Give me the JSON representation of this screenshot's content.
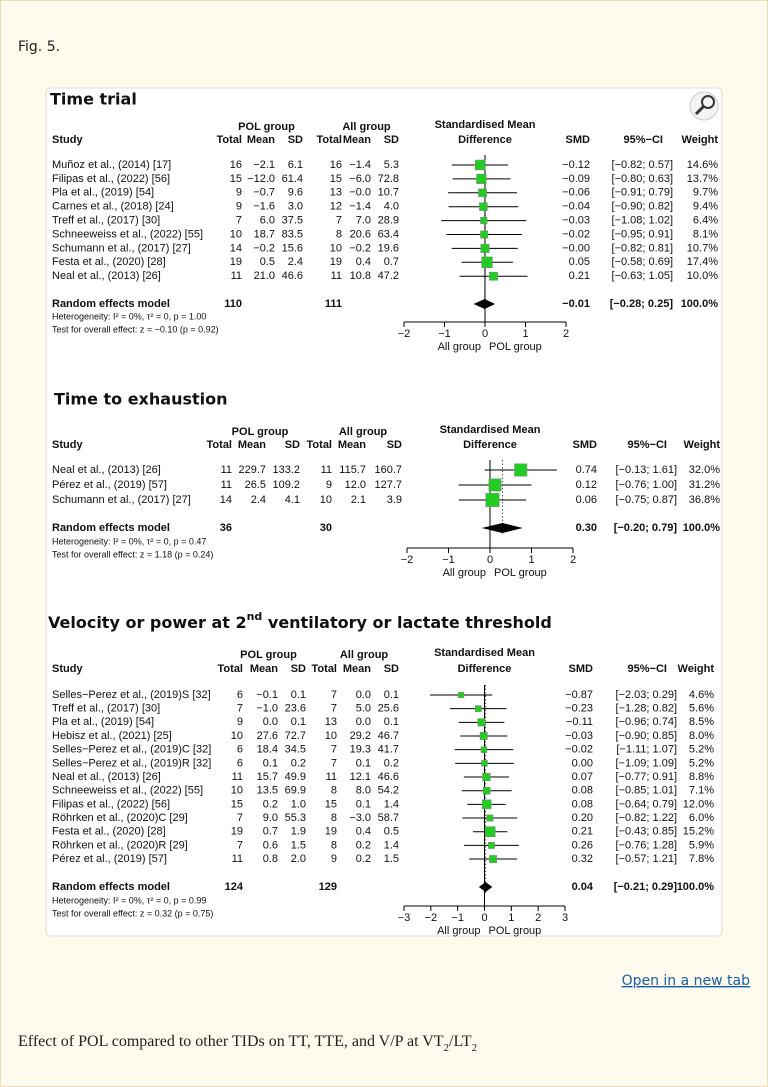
{
  "figure_label": "Fig. 5.",
  "link": "Open in a new tab",
  "caption": [
    "Effect of POL compared to other TIDs on TT, TTE, and V/P at VT",
    "2",
    "/LT",
    "2"
  ],
  "chart_data": [
    {
      "type": "forest",
      "title": "Time trial",
      "group_headers": [
        "POL group",
        "All group"
      ],
      "effect_header": [
        "Standardised Mean",
        "Difference"
      ],
      "columns": [
        "Study",
        "Total",
        "Mean",
        "SD",
        "Total",
        "Mean",
        "SD",
        "SMD",
        "95%−CI",
        "Weight"
      ],
      "studies": [
        "Muñoz et al., (2014) [17]",
        "Filipas et al., (2022) [56]",
        "Pla et al., (2019) [54]",
        "Carnes et al., (2018) [24]",
        "Treff et al., (2017) [30]",
        "Schneeweiss et al., (2022) [55]",
        "Schumann et al., (2017) [27]",
        "Festa et al., (2020) [28]",
        "Neal et al., (2013) [26]"
      ],
      "table": [
        [
          "16",
          "−2.1",
          "6.1",
          "16",
          "−1.4",
          "5.3"
        ],
        [
          "15",
          "−12.0",
          "61.4",
          "15",
          "−6.0",
          "72.8"
        ],
        [
          "9",
          "−0.7",
          "9.6",
          "13",
          "−0.0",
          "10.7"
        ],
        [
          "9",
          "−1.6",
          "3.0",
          "12",
          "−1.4",
          "4.0"
        ],
        [
          "7",
          "6.0",
          "37.5",
          "7",
          "7.0",
          "28.9"
        ],
        [
          "10",
          "18.7",
          "83.5",
          "8",
          "20.6",
          "63.4"
        ],
        [
          "14",
          "−0.2",
          "15.6",
          "10",
          "−0.2",
          "19.6"
        ],
        [
          "19",
          "0.5",
          "2.4",
          "19",
          "0.4",
          "0.7"
        ],
        [
          "11",
          "21.0",
          "46.6",
          "11",
          "10.8",
          "47.2"
        ]
      ],
      "smd": [
        -0.12,
        -0.09,
        -0.06,
        -0.04,
        -0.03,
        -0.02,
        -0.0,
        0.05,
        0.21
      ],
      "smd_labels": [
        "−0.12",
        "−0.09",
        "−0.06",
        "−0.04",
        "−0.03",
        "−0.02",
        "−0.00",
        "0.05",
        "0.21"
      ],
      "ci": [
        [
          -0.82,
          0.57
        ],
        [
          -0.8,
          0.63
        ],
        [
          -0.91,
          0.79
        ],
        [
          -0.9,
          0.82
        ],
        [
          -1.08,
          1.02
        ],
        [
          -0.95,
          0.91
        ],
        [
          -0.82,
          0.81
        ],
        [
          -0.58,
          0.69
        ],
        [
          -0.63,
          1.05
        ]
      ],
      "ci_labels": [
        "[−0.82; 0.57]",
        "[−0.80; 0.63]",
        "[−0.91; 0.79]",
        "[−0.90; 0.82]",
        "[−1.08; 1.02]",
        "[−0.95; 0.91]",
        "[−0.82; 0.81]",
        "[−0.58; 0.69]",
        "[−0.63; 1.05]"
      ],
      "weights": [
        14.6,
        13.7,
        9.7,
        9.4,
        6.4,
        8.1,
        10.7,
        17.4,
        10.0
      ],
      "weight_labels": [
        "14.6%",
        "13.7%",
        "9.7%",
        "9.4%",
        "6.4%",
        "8.1%",
        "10.7%",
        "17.4%",
        "10.0%"
      ],
      "pooled": {
        "label": "Random effects model",
        "pol_total": "110",
        "all_total": "111",
        "smd": -0.01,
        "smd_label": "−0.01",
        "ci": [
          -0.28,
          0.25
        ],
        "ci_label": "[−0.28; 0.25]",
        "weight_label": "100.0%"
      },
      "heterogeneity": "Heterogeneity: I² = 0%, τ² = 0, p = 1.00",
      "overall_test": "Test for overall effect: z = −0.10 (p = 0.92)",
      "xlim": [
        -2,
        2
      ],
      "xticks": [
        {
          "value": -2,
          "label": "−2"
        },
        {
          "value": -1,
          "label": "−1"
        },
        0,
        1,
        2
      ],
      "x_labels": [
        "All group",
        "POL group"
      ],
      "color": "#22cc22"
    },
    {
      "type": "forest",
      "title": "Time to exhaustion",
      "group_headers": [
        "POL group",
        "All group"
      ],
      "effect_header": [
        "Standardised Mean",
        "Difference"
      ],
      "columns": [
        "Study",
        "Total",
        "Mean",
        "SD",
        "Total",
        "Mean",
        "SD",
        "SMD",
        "95%−CI",
        "Weight"
      ],
      "studies": [
        "Neal et al., (2013) [26]",
        "Pérez et al., (2019) [57]",
        "Schumann et al., (2017) [27]"
      ],
      "table": [
        [
          "11",
          "229.7",
          "133.2",
          "11",
          "115.7",
          "160.7"
        ],
        [
          "11",
          "26.5",
          "109.2",
          "9",
          "12.0",
          "127.7"
        ],
        [
          "14",
          "2.4",
          "4.1",
          "10",
          "2.1",
          "3.9"
        ]
      ],
      "smd": [
        0.74,
        0.12,
        0.06
      ],
      "smd_labels": [
        "0.74",
        "0.12",
        "0.06"
      ],
      "ci": [
        [
          -0.13,
          1.61
        ],
        [
          -0.76,
          1.0
        ],
        [
          -0.75,
          0.87
        ]
      ],
      "ci_labels": [
        "[−0.13; 1.61]",
        "[−0.76; 1.00]",
        "[−0.75; 0.87]"
      ],
      "weights": [
        32.0,
        31.2,
        36.8
      ],
      "weight_labels": [
        "32.0%",
        "31.2%",
        "36.8%"
      ],
      "pooled": {
        "label": "Random effects model",
        "pol_total": "36",
        "all_total": "30",
        "smd": 0.3,
        "smd_label": "0.30",
        "ci": [
          -0.2,
          0.79
        ],
        "ci_label": "[−0.20; 0.79]",
        "weight_label": "100.0%"
      },
      "heterogeneity": "Heterogeneity: I² = 0%, τ² = 0, p = 0.47",
      "overall_test": "Test for overall effect: z = 1.18 (p = 0.24)",
      "xlim": [
        -2,
        2
      ],
      "xticks": [
        {
          "value": -2,
          "label": "−2"
        },
        {
          "value": -1,
          "label": "−1"
        },
        0,
        1,
        2
      ],
      "x_labels": [
        "All group",
        "POL group"
      ],
      "color": "#22cc22"
    },
    {
      "type": "forest",
      "title": [
        "Velocity or power at 2",
        "nd",
        " ventilatory or lactate threshold"
      ],
      "group_headers": [
        "POL group",
        "All group"
      ],
      "effect_header": [
        "Standardised Mean",
        "Difference"
      ],
      "columns": [
        "Study",
        "Total",
        "Mean",
        "SD",
        "Total",
        "Mean",
        "SD",
        "SMD",
        "95%−CI",
        "Weight"
      ],
      "studies": [
        "Selles−Perez et al., (2019)S [32]",
        "Treff et al., (2017) [30]",
        "Pla et al., (2019) [54]",
        "Hebisz et al., (2021) [25]",
        "Selles−Perez et al., (2019)C [32]",
        "Selles−Perez et al., (2019)R [32]",
        "Neal et al., (2013) [26]",
        "Schneeweiss et al., (2022) [55]",
        "Filipas et al., (2022) [56]",
        "Röhrken et al., (2020)C [29]",
        "Festa et al., (2020) [28]",
        "Röhrken et al., (2020)R [29]",
        "Pérez et al., (2019) [57]"
      ],
      "table": [
        [
          "6",
          "−0.1",
          "0.1",
          "7",
          "0.0",
          "0.1"
        ],
        [
          "7",
          "−1.0",
          "23.6",
          "7",
          "5.0",
          "25.6"
        ],
        [
          "9",
          "0.0",
          "0.1",
          "13",
          "0.0",
          "0.1"
        ],
        [
          "10",
          "27.6",
          "72.7",
          "10",
          "29.2",
          "46.7"
        ],
        [
          "6",
          "18.4",
          "34.5",
          "7",
          "19.3",
          "41.7"
        ],
        [
          "6",
          "0.1",
          "0.2",
          "7",
          "0.1",
          "0.2"
        ],
        [
          "11",
          "15.7",
          "49.9",
          "11",
          "12.1",
          "46.6"
        ],
        [
          "10",
          "13.5",
          "69.9",
          "8",
          "8.0",
          "54.2"
        ],
        [
          "15",
          "0.2",
          "1.0",
          "15",
          "0.1",
          "1.4"
        ],
        [
          "7",
          "9.0",
          "55.3",
          "8",
          "−3.0",
          "58.7"
        ],
        [
          "19",
          "0.7",
          "1.9",
          "19",
          "0.4",
          "0.5"
        ],
        [
          "7",
          "0.6",
          "1.5",
          "8",
          "0.2",
          "1.4"
        ],
        [
          "11",
          "0.8",
          "2.0",
          "9",
          "0.2",
          "1.5"
        ]
      ],
      "smd": [
        -0.87,
        -0.23,
        -0.11,
        -0.03,
        -0.02,
        0.0,
        0.07,
        0.08,
        0.08,
        0.2,
        0.21,
        0.26,
        0.32
      ],
      "smd_labels": [
        "−0.87",
        "−0.23",
        "−0.11",
        "−0.03",
        "−0.02",
        "0.00",
        "0.07",
        "0.08",
        "0.08",
        "0.20",
        "0.21",
        "0.26",
        "0.32"
      ],
      "ci": [
        [
          -2.03,
          0.29
        ],
        [
          -1.28,
          0.82
        ],
        [
          -0.96,
          0.74
        ],
        [
          -0.9,
          0.85
        ],
        [
          -1.11,
          1.07
        ],
        [
          -1.09,
          1.09
        ],
        [
          -0.77,
          0.91
        ],
        [
          -0.85,
          1.01
        ],
        [
          -0.64,
          0.79
        ],
        [
          -0.82,
          1.22
        ],
        [
          -0.43,
          0.85
        ],
        [
          -0.76,
          1.28
        ],
        [
          -0.57,
          1.21
        ]
      ],
      "ci_labels": [
        "[−2.03; 0.29]",
        "[−1.28; 0.82]",
        "[−0.96; 0.74]",
        "[−0.90; 0.85]",
        "[−1.11; 1.07]",
        "[−1.09; 1.09]",
        "[−0.77; 0.91]",
        "[−0.85; 1.01]",
        "[−0.64; 0.79]",
        "[−0.82; 1.22]",
        "[−0.43; 0.85]",
        "[−0.76; 1.28]",
        "[−0.57; 1.21]"
      ],
      "weights": [
        4.6,
        5.6,
        8.5,
        8.0,
        5.2,
        5.2,
        8.8,
        7.1,
        12.0,
        6.0,
        15.2,
        5.9,
        7.8
      ],
      "weight_labels": [
        "4.6%",
        "5.6%",
        "8.5%",
        "8.0%",
        "5.2%",
        "5.2%",
        "8.8%",
        "7.1%",
        "12.0%",
        "6.0%",
        "15.2%",
        "5.9%",
        "7.8%"
      ],
      "pooled": {
        "label": "Random effects model",
        "pol_total": "124",
        "all_total": "129",
        "smd": 0.04,
        "smd_label": "0.04",
        "ci": [
          -0.21,
          0.29
        ],
        "ci_label": "[−0.21; 0.29]",
        "weight_label": "100.0%"
      },
      "heterogeneity": "Heterogeneity: I² = 0%, τ² = 0, p = 0.99",
      "overall_test": "Test for overall effect: z = 0.32 (p = 0.75)",
      "xlim": [
        -3,
        3
      ],
      "xticks": [
        {
          "value": -3,
          "label": "−3"
        },
        {
          "value": -2,
          "label": "−2"
        },
        {
          "value": -1,
          "label": "−1"
        },
        0,
        1,
        2,
        3
      ],
      "x_labels": [
        "All group",
        "POL group"
      ],
      "color": "#22cc22"
    }
  ]
}
